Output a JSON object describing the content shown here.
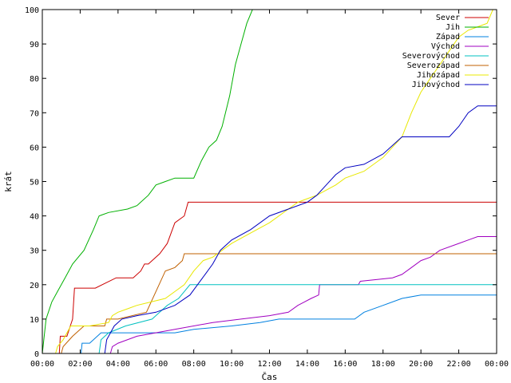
{
  "chart_data": {
    "type": "line",
    "xlabel": "Čas",
    "ylabel": "krát",
    "x_unit": "hours of day",
    "xlim": [
      0,
      24
    ],
    "ylim": [
      0,
      100
    ],
    "x_ticks": [
      {
        "value": 0,
        "label": "00:00"
      },
      {
        "value": 2,
        "label": "02:00"
      },
      {
        "value": 4,
        "label": "04:00"
      },
      {
        "value": 6,
        "label": "06:00"
      },
      {
        "value": 8,
        "label": "08:00"
      },
      {
        "value": 10,
        "label": "10:00"
      },
      {
        "value": 12,
        "label": "12:00"
      },
      {
        "value": 14,
        "label": "14:00"
      },
      {
        "value": 16,
        "label": "16:00"
      },
      {
        "value": 18,
        "label": "18:00"
      },
      {
        "value": 20,
        "label": "20:00"
      },
      {
        "value": 22,
        "label": "22:00"
      },
      {
        "value": 24,
        "label": "00:00"
      }
    ],
    "y_ticks": [
      {
        "value": 0,
        "label": "0"
      },
      {
        "value": 10,
        "label": "10"
      },
      {
        "value": 20,
        "label": "20"
      },
      {
        "value": 30,
        "label": "30"
      },
      {
        "value": 40,
        "label": "40"
      },
      {
        "value": 50,
        "label": "50"
      },
      {
        "value": 60,
        "label": "60"
      },
      {
        "value": 70,
        "label": "70"
      },
      {
        "value": 80,
        "label": "80"
      },
      {
        "value": 90,
        "label": "90"
      },
      {
        "value": 100,
        "label": "100"
      }
    ],
    "grid": false,
    "legend_position": "top-right",
    "series": [
      {
        "name": "Sever",
        "color": "#cc0000",
        "x": [
          0.9,
          0.95,
          1.3,
          1.6,
          1.7,
          2.0,
          2.8,
          3.9,
          4.2,
          4.6,
          4.8,
          5.2,
          5.4,
          5.6,
          6.2,
          6.6,
          7.0,
          7.5,
          7.7,
          24
        ],
        "y": [
          0,
          5,
          5,
          10,
          19,
          19,
          19,
          22,
          22,
          22,
          22,
          24,
          26,
          26,
          29,
          32,
          38,
          40,
          44,
          44
        ]
      },
      {
        "name": "Jih",
        "color": "#00b000",
        "x": [
          0,
          0.2,
          0.5,
          0.8,
          1.2,
          1.6,
          2.2,
          2.7,
          3.0,
          3.5,
          4.5,
          5.0,
          5.6,
          6.0,
          6.5,
          7.0,
          8.0,
          8.4,
          8.8,
          9.2,
          9.5,
          9.9,
          10.2,
          10.5,
          10.8,
          11.1,
          24
        ],
        "y": [
          0,
          10,
          15,
          18,
          22,
          26,
          30,
          36,
          40,
          41,
          42,
          43,
          46,
          49,
          50,
          51,
          51,
          56,
          60,
          62,
          66,
          75,
          84,
          90,
          96,
          100,
          100
        ]
      },
      {
        "name": "Západ",
        "color": "#0080e0",
        "x": [
          2.05,
          2.1,
          2.5,
          3.1,
          3.6,
          4.2,
          4.6,
          5.0,
          6.5,
          7.0,
          8.0,
          10.0,
          11.5,
          12.5,
          14.0,
          15.0,
          16.5,
          17.0,
          18.0,
          19.0,
          20.0,
          24
        ],
        "y": [
          0,
          3,
          3,
          6,
          6,
          6,
          6,
          6,
          6,
          6,
          7,
          8,
          9,
          10,
          10,
          10,
          10,
          12,
          14,
          16,
          17,
          17
        ]
      },
      {
        "name": "Východ",
        "color": "#a000c0",
        "x": [
          3.6,
          3.7,
          4.0,
          5.0,
          7.0,
          9.0,
          10.5,
          12.0,
          13.0,
          13.5,
          14.2,
          14.6,
          14.65,
          16.7,
          16.8,
          18.5,
          19.0,
          19.5,
          20.0,
          20.5,
          21.0,
          22.0,
          22.5,
          23.0,
          24
        ],
        "y": [
          0,
          2,
          3,
          5,
          7,
          9,
          10,
          11,
          12,
          14,
          16,
          17,
          20,
          20,
          21,
          22,
          23,
          25,
          27,
          28,
          30,
          32,
          33,
          34,
          34
        ]
      },
      {
        "name": "Severovýchod",
        "color": "#00c0c0",
        "x": [
          3.0,
          3.1,
          3.5,
          4.4,
          5.8,
          6.2,
          6.6,
          7.2,
          7.5,
          7.8,
          24
        ],
        "y": [
          0,
          4,
          6,
          8,
          10,
          12,
          14,
          16,
          18,
          20,
          20
        ]
      },
      {
        "name": "Severozápad",
        "color": "#c06000",
        "x": [
          1.0,
          1.1,
          1.6,
          2.2,
          3.3,
          3.4,
          4.0,
          5.5,
          6.5,
          7.0,
          7.4,
          7.5,
          24
        ],
        "y": [
          0,
          2,
          5,
          8,
          8,
          10,
          10,
          12,
          24,
          25,
          27,
          29,
          29
        ]
      },
      {
        "name": "Jihozápad",
        "color": "#e8e800",
        "x": [
          0.7,
          0.8,
          1.1,
          1.5,
          2.5,
          3.5,
          3.7,
          4.0,
          4.5,
          5.0,
          6.5,
          7.0,
          7.5,
          8.0,
          8.5,
          9.0,
          10.0,
          11.0,
          12.0,
          13.0,
          13.5,
          14.0,
          14.5,
          15.5,
          16.0,
          17.0,
          18.0,
          19.0,
          19.5,
          20.0,
          20.5,
          21.0,
          21.5,
          22.0,
          22.5,
          23.0,
          23.5,
          23.8,
          24
        ],
        "y": [
          0,
          2,
          4,
          8,
          8,
          9,
          11,
          12,
          13,
          14,
          16,
          18,
          20,
          24,
          27,
          28,
          32,
          35,
          38,
          42,
          44,
          45,
          46,
          49,
          51,
          53,
          57,
          63,
          70,
          76,
          80,
          84,
          88,
          92,
          94,
          95,
          96,
          100,
          100
        ]
      },
      {
        "name": "Jihovýchod",
        "color": "#0000c0",
        "x": [
          3.3,
          3.4,
          3.8,
          4.2,
          5.0,
          6.0,
          7.0,
          7.8,
          8.2,
          8.6,
          9.0,
          9.4,
          10.0,
          11.0,
          12.0,
          13.0,
          14.0,
          14.5,
          15.0,
          15.5,
          16.0,
          17.0,
          18.0,
          19.0,
          20.0,
          20.5,
          21.0,
          21.5,
          22.0,
          22.5,
          23.0,
          24
        ],
        "y": [
          0,
          4,
          8,
          10,
          11,
          12,
          14,
          17,
          20,
          23,
          26,
          30,
          33,
          36,
          40,
          42,
          44,
          46,
          49,
          52,
          54,
          55,
          58,
          63,
          63,
          63,
          63,
          63,
          66,
          70,
          72,
          72
        ]
      }
    ]
  }
}
